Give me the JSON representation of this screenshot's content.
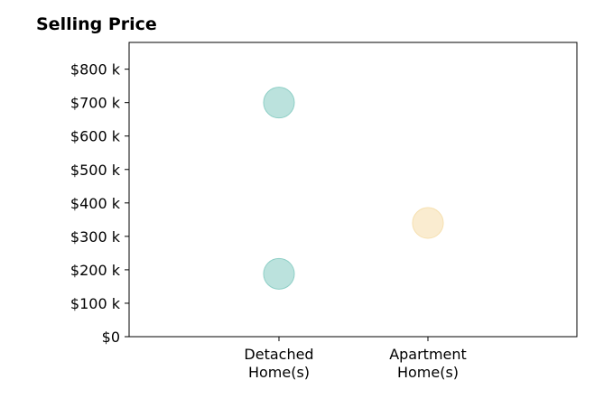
{
  "chart_data": {
    "type": "scatter",
    "title": "Selling Price",
    "xlabel": "",
    "ylabel": "",
    "categories": [
      [
        "Detached",
        "Home(s)"
      ],
      [
        "Apartment",
        "Home(s)"
      ]
    ],
    "y_ticks": [
      "$0",
      "$100 k",
      "$200 k",
      "$300 k",
      "$400 k",
      "$500 k",
      "$600 k",
      "$700 k",
      "$800 k"
    ],
    "y_tick_values": [
      0,
      100000,
      200000,
      300000,
      400000,
      500000,
      600000,
      700000,
      800000
    ],
    "ylim": [
      0,
      880000
    ],
    "grid": false,
    "points": [
      {
        "category": 0,
        "value": 700000,
        "color": "#8ecfc6"
      },
      {
        "category": 0,
        "value": 188000,
        "color": "#8ecfc6"
      },
      {
        "category": 1,
        "value": 340000,
        "color": "#f6e0b0"
      }
    ]
  }
}
